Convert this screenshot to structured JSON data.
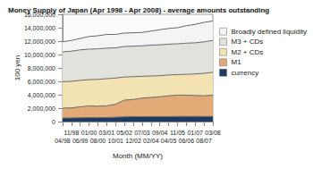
{
  "chart_data": {
    "type": "area",
    "title": "Money Supply of Japan (Apr 1998 - Apr 2008) - average amounts outstanding",
    "x_label": "Month (MM/YY)",
    "y_label": "100 yen",
    "categories": [
      "04/98",
      "11/98",
      "06/99",
      "01/00",
      "08/00",
      "03/01",
      "10/01",
      "05/02",
      "12/02",
      "07/03",
      "02/04",
      "09/04",
      "04/05",
      "11/05",
      "06/06",
      "01/07",
      "08/07",
      "03/08"
    ],
    "series": [
      {
        "name": "Broadly defined liquidity",
        "color": "#f4f4f4",
        "values": [
          11900000,
          12100000,
          12400000,
          12700000,
          12800000,
          13000000,
          13000000,
          13200000,
          13250000,
          13300000,
          13500000,
          13700000,
          13900000,
          14000000,
          14300000,
          14500000,
          14800000,
          15000000
        ]
      },
      {
        "name": "M3 + CDs",
        "color": "#e2e2dc",
        "values": [
          10400000,
          10500000,
          10700000,
          10800000,
          10850000,
          10950000,
          11000000,
          11200000,
          11250000,
          11300000,
          11400000,
          11450000,
          11550000,
          11600000,
          11700000,
          11750000,
          11900000,
          12100000
        ]
      },
      {
        "name": "M2 + CDs",
        "color": "#f3e3b3",
        "values": [
          5950000,
          6000000,
          6150000,
          6250000,
          6300000,
          6400000,
          6500000,
          6650000,
          6700000,
          6750000,
          6800000,
          6850000,
          6950000,
          7000000,
          7050000,
          7100000,
          7200000,
          7350000
        ]
      },
      {
        "name": "M1",
        "color": "#e2aa76",
        "values": [
          2000000,
          2050000,
          2200000,
          2350000,
          2300000,
          2350000,
          2600000,
          3200000,
          3300000,
          3500000,
          3600000,
          3700000,
          3850000,
          3950000,
          3950000,
          3900000,
          3850000,
          3950000
        ]
      },
      {
        "name": "currency",
        "color": "#1f3a60",
        "values": [
          520000,
          540000,
          560000,
          590000,
          580000,
          610000,
          650000,
          700000,
          730000,
          730000,
          740000,
          740000,
          750000,
          760000,
          760000,
          760000,
          760000,
          770000
        ]
      }
    ],
    "ylim": [
      0,
      16000000
    ],
    "yticks": [
      0,
      {
        "value": 2000000,
        "label": "2,000,000"
      },
      {
        "value": 4000000,
        "label": "4,000,000"
      },
      {
        "value": 6000000,
        "label": "6,000,000"
      },
      {
        "value": 8000000,
        "label": "8,000,000"
      },
      {
        "value": 10000000,
        "label": "10,000,000"
      },
      {
        "value": 12000000,
        "label": "12,000,000"
      },
      {
        "value": 14000000,
        "label": "14,000,000"
      },
      {
        "value": 16000000,
        "label": "16,000,000"
      }
    ],
    "stacked": false,
    "grid": false,
    "legend": "right"
  }
}
